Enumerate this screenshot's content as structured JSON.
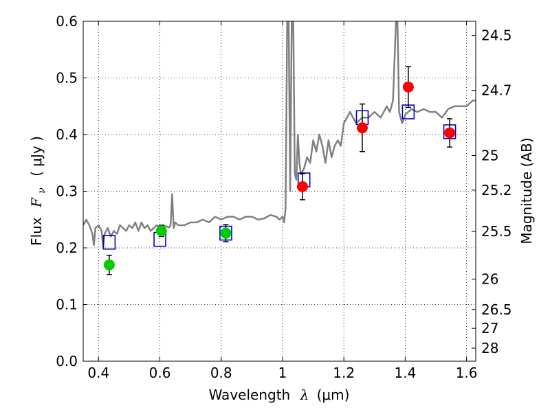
{
  "chart_data": {
    "type": "scatter",
    "xlabel_text": "Wavelength",
    "xlabel_symbol": "λ",
    "xlabel_unit": "(μm)",
    "ylabel_text": "Flux",
    "ylabel_symbol": "F",
    "ylabel_subscript": "ν",
    "ylabel_unit": "( μJy )",
    "y2label": "Magnitude (AB)",
    "xlim": [
      0.35,
      1.63
    ],
    "ylim": [
      0.0,
      0.6
    ],
    "grid": true,
    "x_ticks": [
      {
        "value": 0.4,
        "label": "0.4"
      },
      {
        "value": 0.6,
        "label": "0.6"
      },
      {
        "value": 0.8,
        "label": "0.8"
      },
      {
        "value": 1.0,
        "label": "1"
      },
      {
        "value": 1.2,
        "label": "1.2"
      },
      {
        "value": 1.4,
        "label": "1.4"
      },
      {
        "value": 1.6,
        "label": "1.6"
      }
    ],
    "y_ticks": [
      {
        "value": 0.0,
        "label": "0.0"
      },
      {
        "value": 0.1,
        "label": "0.1"
      },
      {
        "value": 0.2,
        "label": "0.2"
      },
      {
        "value": 0.3,
        "label": "0.3"
      },
      {
        "value": 0.4,
        "label": "0.4"
      },
      {
        "value": 0.5,
        "label": "0.5"
      },
      {
        "value": 0.6,
        "label": "0.6"
      }
    ],
    "right_ticks": [
      {
        "flux": 0.575,
        "label": "24.5"
      },
      {
        "flux": 0.478,
        "label": "24.7"
      },
      {
        "flux": 0.363,
        "label": "25"
      },
      {
        "flux": 0.302,
        "label": "25.2"
      },
      {
        "flux": 0.229,
        "label": "25.5"
      },
      {
        "flux": 0.145,
        "label": "26"
      },
      {
        "flux": 0.091,
        "label": "26.5"
      },
      {
        "flux": 0.058,
        "label": "27"
      },
      {
        "flux": 0.023,
        "label": "28"
      }
    ],
    "series": [
      {
        "kind": "line",
        "color": "#808080",
        "x": [
          0.35,
          0.36,
          0.37,
          0.38,
          0.385,
          0.39,
          0.4,
          0.41,
          0.415,
          0.42,
          0.43,
          0.44,
          0.45,
          0.46,
          0.47,
          0.48,
          0.49,
          0.5,
          0.51,
          0.52,
          0.53,
          0.54,
          0.55,
          0.56,
          0.57,
          0.58,
          0.59,
          0.6,
          0.61,
          0.62,
          0.63,
          0.635,
          0.64,
          0.645,
          0.65,
          0.66,
          0.67,
          0.68,
          0.7,
          0.72,
          0.74,
          0.76,
          0.78,
          0.8,
          0.82,
          0.84,
          0.86,
          0.88,
          0.9,
          0.92,
          0.94,
          0.96,
          0.98,
          0.99,
          1.0,
          1.005,
          1.01,
          1.015,
          1.02,
          1.025,
          1.03,
          1.035,
          1.04,
          1.045,
          1.05,
          1.055,
          1.06,
          1.07,
          1.08,
          1.09,
          1.1,
          1.11,
          1.12,
          1.13,
          1.14,
          1.15,
          1.16,
          1.17,
          1.18,
          1.19,
          1.2,
          1.22,
          1.24,
          1.26,
          1.28,
          1.3,
          1.32,
          1.34,
          1.35,
          1.36,
          1.37,
          1.375,
          1.38,
          1.39,
          1.4,
          1.42,
          1.44,
          1.46,
          1.48,
          1.5,
          1.52,
          1.54,
          1.56,
          1.58,
          1.6,
          1.62,
          1.63
        ],
        "y": [
          0.24,
          0.25,
          0.24,
          0.225,
          0.205,
          0.235,
          0.24,
          0.23,
          0.2,
          0.225,
          0.235,
          0.22,
          0.23,
          0.225,
          0.24,
          0.235,
          0.23,
          0.24,
          0.235,
          0.245,
          0.23,
          0.245,
          0.235,
          0.24,
          0.23,
          0.235,
          0.24,
          0.235,
          0.24,
          0.238,
          0.236,
          0.24,
          0.295,
          0.235,
          0.245,
          0.24,
          0.24,
          0.24,
          0.245,
          0.245,
          0.25,
          0.245,
          0.255,
          0.25,
          0.255,
          0.255,
          0.25,
          0.255,
          0.255,
          0.25,
          0.252,
          0.258,
          0.255,
          0.25,
          0.255,
          0.245,
          0.27,
          0.6,
          0.6,
          0.3,
          0.6,
          0.6,
          0.33,
          0.32,
          0.4,
          0.35,
          0.33,
          0.34,
          0.36,
          0.35,
          0.39,
          0.37,
          0.4,
          0.38,
          0.35,
          0.39,
          0.36,
          0.38,
          0.39,
          0.38,
          0.42,
          0.44,
          0.42,
          0.43,
          0.43,
          0.44,
          0.43,
          0.45,
          0.44,
          0.46,
          0.6,
          0.6,
          0.44,
          0.42,
          0.435,
          0.445,
          0.44,
          0.445,
          0.44,
          0.44,
          0.43,
          0.445,
          0.45,
          0.45,
          0.45,
          0.46,
          0.46
        ]
      },
      {
        "kind": "model",
        "marker": "open-square",
        "color": "#0000cc",
        "x": [
          0.435,
          0.6,
          0.815,
          1.07,
          1.26,
          1.41,
          1.545
        ],
        "y": [
          0.21,
          0.215,
          0.226,
          0.32,
          0.43,
          0.44,
          0.405
        ]
      },
      {
        "kind": "obs-optical",
        "marker": "filled-circle",
        "color": "#00cc00",
        "x": [
          0.435,
          0.605,
          0.815
        ],
        "y": [
          0.17,
          0.23,
          0.226
        ],
        "yerr": [
          0.017,
          0.01,
          0.015
        ]
      },
      {
        "kind": "obs-nir",
        "marker": "filled-circle",
        "color": "#ff0000",
        "x": [
          1.065,
          1.26,
          1.41,
          1.545
        ],
        "y": [
          0.308,
          0.412,
          0.484,
          0.403
        ],
        "yerr": [
          0.023,
          0.042,
          0.036,
          0.025
        ]
      }
    ]
  }
}
